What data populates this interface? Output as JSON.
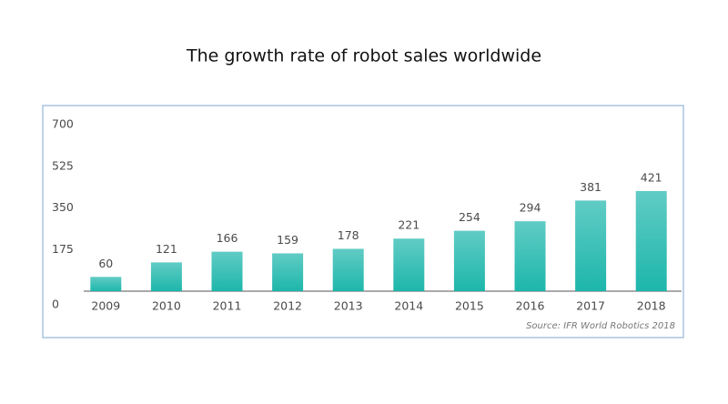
{
  "chart_data": {
    "type": "bar",
    "title": "The growth rate of robot sales worldwide",
    "categories": [
      "2009",
      "2010",
      "2011",
      "2012",
      "2013",
      "2014",
      "2015",
      "2016",
      "2017",
      "2018"
    ],
    "values": [
      60,
      121,
      166,
      159,
      178,
      221,
      254,
      294,
      381,
      421
    ],
    "color": "#1db6ab",
    "ylim": [
      0,
      700
    ],
    "yticks": [
      0,
      175,
      350,
      525,
      700
    ],
    "annotation": "Source: IFR World Robotics 2018"
  }
}
